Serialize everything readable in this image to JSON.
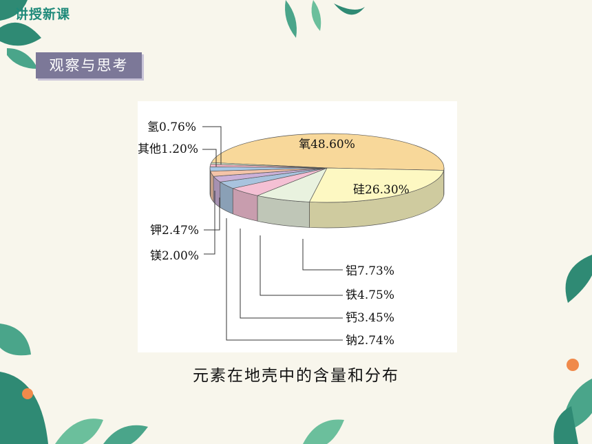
{
  "header": {
    "tag": "讲授新课"
  },
  "section": {
    "label": "观察与思考"
  },
  "caption": "元素在地壳中的含量和分布",
  "chart_data": {
    "type": "pie",
    "title": "",
    "slices": [
      {
        "name": "氧",
        "label": "氧48.60%",
        "value": 48.6,
        "color": "#f8d89a"
      },
      {
        "name": "硅",
        "label": "硅26.30%",
        "value": 26.3,
        "color": "#fdf8c2"
      },
      {
        "name": "铝",
        "label": "铝7.73%",
        "value": 7.73,
        "color": "#e9f2df"
      },
      {
        "name": "铁",
        "label": "铁4.75%",
        "value": 4.75,
        "color": "#f4c0d4"
      },
      {
        "name": "钙",
        "label": "钙3.45%",
        "value": 3.45,
        "color": "#a8c3de"
      },
      {
        "name": "钠",
        "label": "钠2.74%",
        "value": 2.74,
        "color": "#cbb1d8"
      },
      {
        "name": "钾",
        "label": "钾2.47%",
        "value": 2.47,
        "color": "#f4c4a8"
      },
      {
        "name": "镁",
        "label": "镁2.00%",
        "value": 2.0,
        "color": "#a7c8e6"
      },
      {
        "name": "其他",
        "label": "其他1.20%",
        "value": 1.2,
        "color": "#f4b6c6"
      },
      {
        "name": "氢",
        "label": "氢0.76%",
        "value": 0.76,
        "color": "#d9ecd0"
      }
    ]
  }
}
